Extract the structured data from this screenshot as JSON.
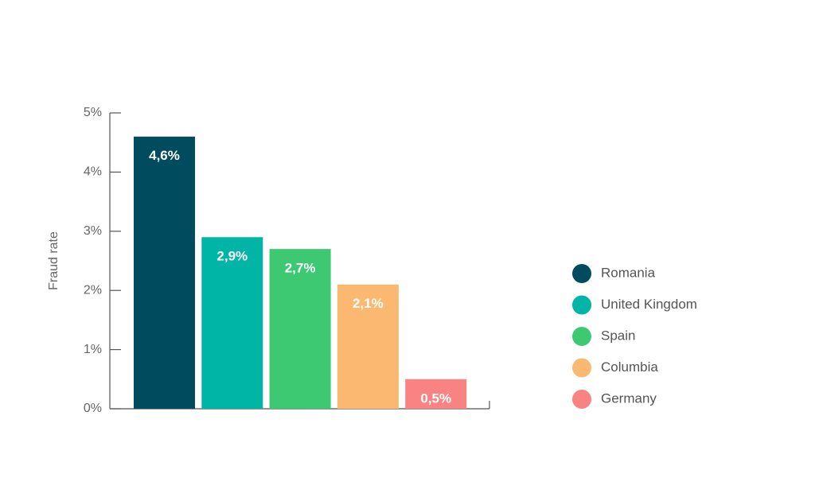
{
  "chart_data": {
    "type": "bar",
    "ylabel": "Fraud rate",
    "categories": [
      "Romania",
      "United Kingdom",
      "Spain",
      "Columbia",
      "Germany"
    ],
    "values": [
      4.6,
      2.9,
      2.7,
      2.1,
      0.5
    ],
    "value_labels": [
      "4,6%",
      "2,9%",
      "2,7%",
      "2,1%",
      "0,5%"
    ],
    "colors": [
      "#004c5e",
      "#00b4a6",
      "#3cc971",
      "#fbb870",
      "#f98282"
    ],
    "ylim": [
      0,
      5
    ],
    "yticks": [
      {
        "value": 0,
        "label": "0%"
      },
      {
        "value": 1,
        "label": "1%"
      },
      {
        "value": 2,
        "label": "2%"
      },
      {
        "value": 3,
        "label": "3%"
      },
      {
        "value": 4,
        "label": "4%"
      },
      {
        "value": 5,
        "label": "5%"
      }
    ],
    "legend": "right"
  }
}
